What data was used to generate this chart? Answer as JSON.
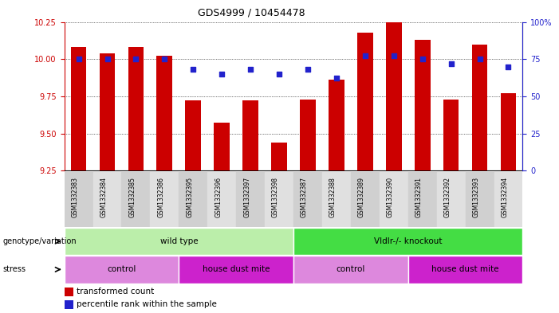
{
  "title": "GDS4999 / 10454478",
  "samples": [
    "GSM1332383",
    "GSM1332384",
    "GSM1332385",
    "GSM1332386",
    "GSM1332395",
    "GSM1332396",
    "GSM1332397",
    "GSM1332398",
    "GSM1332387",
    "GSM1332388",
    "GSM1332389",
    "GSM1332390",
    "GSM1332391",
    "GSM1332392",
    "GSM1332393",
    "GSM1332394"
  ],
  "transformed_count": [
    10.08,
    10.04,
    10.08,
    10.02,
    9.72,
    9.57,
    9.72,
    9.44,
    9.73,
    9.86,
    10.18,
    10.25,
    10.13,
    9.73,
    10.1,
    9.77
  ],
  "percentile_rank": [
    75,
    75,
    75,
    75,
    68,
    65,
    68,
    65,
    68,
    62,
    77,
    77,
    75,
    72,
    75,
    70
  ],
  "ylim_left": [
    9.25,
    10.25
  ],
  "yticks_left": [
    9.25,
    9.5,
    9.75,
    10.0,
    10.25
  ],
  "ylim_right": [
    0,
    100
  ],
  "yticks_right": [
    0,
    25,
    50,
    75,
    100
  ],
  "bar_color": "#cc0000",
  "dot_color": "#2222cc",
  "bar_bottom": 9.25,
  "genotype_groups": [
    {
      "label": "wild type",
      "start": 0,
      "end": 8,
      "color": "#bbeeaa"
    },
    {
      "label": "Vldlr-/- knockout",
      "start": 8,
      "end": 16,
      "color": "#44dd44"
    }
  ],
  "stress_control_color": "#dd88dd",
  "stress_hdm_color": "#cc22cc",
  "stress_groups": [
    {
      "label": "control",
      "start": 0,
      "end": 4
    },
    {
      "label": "house dust mite",
      "start": 4,
      "end": 8
    },
    {
      "label": "control",
      "start": 8,
      "end": 12
    },
    {
      "label": "house dust mite",
      "start": 12,
      "end": 16
    }
  ],
  "legend_bar_label": "transformed count",
  "legend_dot_label": "percentile rank within the sample",
  "tick_color_left": "#cc0000",
  "tick_color_right": "#2222cc",
  "tick_bg_even": "#d0d0d0",
  "tick_bg_odd": "#e0e0e0"
}
